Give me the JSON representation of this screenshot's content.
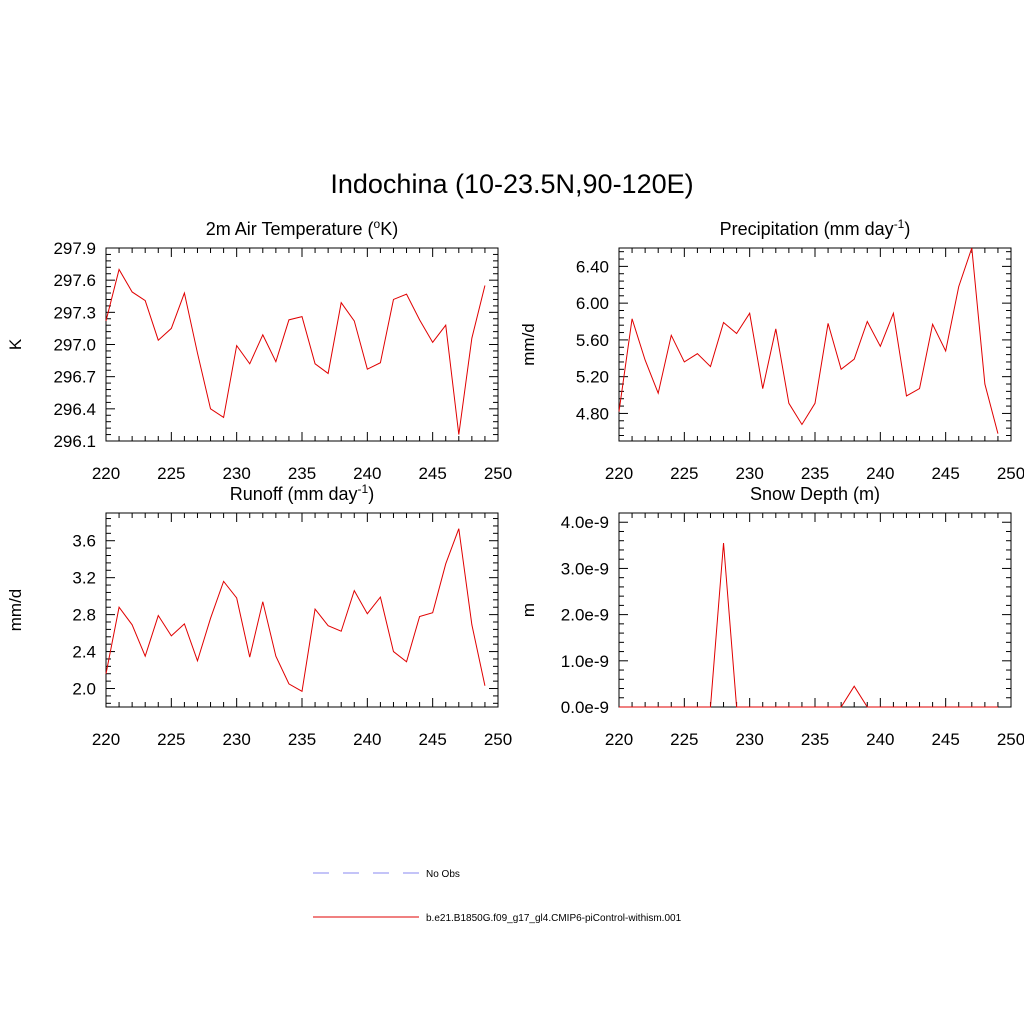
{
  "title": "Indochina (10-23.5N,90-120E)",
  "chart_data": [
    {
      "type": "line",
      "title": "2m Air Temperature (",
      "title_super": "o",
      "title_tail": "K)",
      "ylabel": "K",
      "xlim": [
        220,
        250
      ],
      "xticks": [
        220,
        225,
        230,
        235,
        240,
        245,
        250
      ],
      "xtick_labels": [
        "220",
        "225",
        "230",
        "235",
        "240",
        "245",
        "250"
      ],
      "ylim": [
        296.1,
        297.9
      ],
      "yticks": [
        296.1,
        296.4,
        296.7,
        297.0,
        297.3,
        297.6,
        297.9
      ],
      "ytick_labels": [
        "296.1",
        "296.4",
        "296.7",
        "297.0",
        "297.3",
        "297.6",
        "297.9"
      ],
      "x": [
        220,
        221,
        222,
        223,
        224,
        225,
        226,
        227,
        228,
        229,
        230,
        231,
        232,
        233,
        234,
        235,
        236,
        237,
        238,
        239,
        240,
        241,
        242,
        243,
        244,
        245,
        246,
        247,
        248,
        249
      ],
      "series": [
        {
          "color": "#e00000",
          "values": [
            297.22,
            297.7,
            297.49,
            297.41,
            297.04,
            297.15,
            297.48,
            296.92,
            296.4,
            296.32,
            296.99,
            296.82,
            297.09,
            296.84,
            297.23,
            297.26,
            296.82,
            296.73,
            297.39,
            297.22,
            296.77,
            296.83,
            297.42,
            297.47,
            297.23,
            297.02,
            297.18,
            296.16,
            297.06,
            297.55
          ]
        }
      ]
    },
    {
      "type": "line",
      "title": "Precipitation (mm day",
      "title_super": "-1",
      "title_tail": ")",
      "ylabel": "mm/d",
      "xlim": [
        220,
        250
      ],
      "xticks": [
        220,
        225,
        230,
        235,
        240,
        245,
        250
      ],
      "xtick_labels": [
        "220",
        "225",
        "230",
        "235",
        "240",
        "245",
        "250"
      ],
      "ylim": [
        4.5,
        6.6
      ],
      "yticks": [
        4.8,
        5.2,
        5.6,
        6.0,
        6.4
      ],
      "ytick_labels": [
        "4.80",
        "5.20",
        "5.60",
        "6.00",
        "6.40"
      ],
      "x": [
        220,
        221,
        222,
        223,
        224,
        225,
        226,
        227,
        228,
        229,
        230,
        231,
        232,
        233,
        234,
        235,
        236,
        237,
        238,
        239,
        240,
        241,
        242,
        243,
        244,
        245,
        246,
        247,
        248,
        249
      ],
      "series": [
        {
          "color": "#e00000",
          "values": [
            4.82,
            5.83,
            5.38,
            5.02,
            5.65,
            5.36,
            5.45,
            5.31,
            5.79,
            5.67,
            5.89,
            5.07,
            5.72,
            4.91,
            4.68,
            4.91,
            5.78,
            5.28,
            5.39,
            5.8,
            5.53,
            5.89,
            4.99,
            5.07,
            5.77,
            5.48,
            6.18,
            6.6,
            5.12,
            4.58
          ]
        }
      ]
    },
    {
      "type": "line",
      "title": "Runoff (mm day",
      "title_super": "-1",
      "title_tail": ")",
      "ylabel": "mm/d",
      "xlim": [
        220,
        250
      ],
      "xticks": [
        220,
        225,
        230,
        235,
        240,
        245,
        250
      ],
      "xtick_labels": [
        "220",
        "225",
        "230",
        "235",
        "240",
        "245",
        "250"
      ],
      "ylim": [
        1.8,
        3.9
      ],
      "yticks": [
        2.0,
        2.4,
        2.8,
        3.2,
        3.6
      ],
      "ytick_labels": [
        "2.0",
        "2.4",
        "2.8",
        "3.2",
        "3.6"
      ],
      "x": [
        220,
        221,
        222,
        223,
        224,
        225,
        226,
        227,
        228,
        229,
        230,
        231,
        232,
        233,
        234,
        235,
        236,
        237,
        238,
        239,
        240,
        241,
        242,
        243,
        244,
        245,
        246,
        247,
        248,
        249
      ],
      "series": [
        {
          "color": "#e00000",
          "values": [
            2.16,
            2.88,
            2.69,
            2.35,
            2.79,
            2.57,
            2.7,
            2.3,
            2.76,
            3.16,
            2.98,
            2.34,
            2.94,
            2.35,
            2.05,
            1.97,
            2.86,
            2.68,
            2.62,
            3.06,
            2.81,
            2.99,
            2.4,
            2.29,
            2.78,
            2.82,
            3.35,
            3.73,
            2.69,
            2.03
          ]
        }
      ]
    },
    {
      "type": "line",
      "title": "Snow Depth (m)",
      "title_super": "",
      "title_tail": "",
      "ylabel": "m",
      "xlim": [
        220,
        250
      ],
      "xticks": [
        220,
        225,
        230,
        235,
        240,
        245,
        250
      ],
      "xtick_labels": [
        "220",
        "225",
        "230",
        "235",
        "240",
        "245",
        "250"
      ],
      "ylim": [
        0,
        4.2e-09
      ],
      "yticks": [
        0,
        1e-09,
        2e-09,
        3e-09,
        4e-09
      ],
      "ytick_labels": [
        "0.0e-9",
        "1.0e-9",
        "2.0e-9",
        "3.0e-9",
        "4.0e-9"
      ],
      "x": [
        220,
        221,
        222,
        223,
        224,
        225,
        226,
        227,
        228,
        229,
        230,
        231,
        232,
        233,
        234,
        235,
        236,
        237,
        238,
        239,
        240,
        241,
        242,
        243,
        244,
        245,
        246,
        247,
        248,
        249
      ],
      "series": [
        {
          "color": "#e00000",
          "values": [
            0,
            0,
            0,
            0,
            0,
            0,
            0,
            0,
            3.55e-09,
            0,
            0,
            0,
            0,
            0,
            0,
            0,
            0,
            0,
            4.5e-10,
            0,
            0,
            0,
            0,
            0,
            0,
            0,
            0,
            0,
            0,
            0
          ]
        }
      ]
    }
  ],
  "legend": [
    {
      "label": "No Obs",
      "color": "#8a8af0",
      "dash": true
    },
    {
      "label": "b.e21.B1850G.f09_g17_gl4.CMIP6-piControl-withism.001",
      "color": "#e00000",
      "dash": false
    }
  ]
}
